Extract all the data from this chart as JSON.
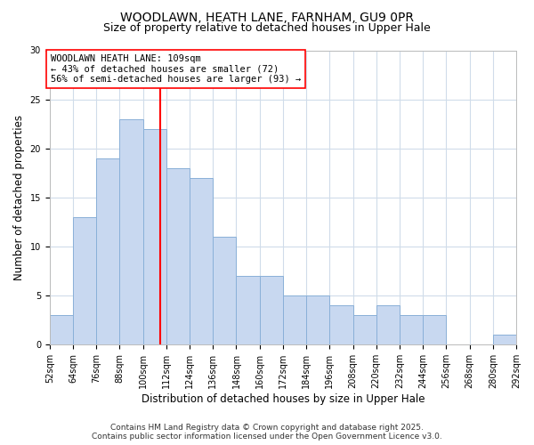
{
  "title": "WOODLAWN, HEATH LANE, FARNHAM, GU9 0PR",
  "subtitle": "Size of property relative to detached houses in Upper Hale",
  "xlabel": "Distribution of detached houses by size in Upper Hale",
  "ylabel": "Number of detached properties",
  "bar_color": "#c8d8f0",
  "bar_edge_color": "#8ab0d8",
  "grid_color": "#d0dcea",
  "background_color": "#ffffff",
  "vline_x": 109,
  "vline_color": "red",
  "annotation_title": "WOODLAWN HEATH LANE: 109sqm",
  "annotation_line1": "← 43% of detached houses are smaller (72)",
  "annotation_line2": "56% of semi-detached houses are larger (93) →",
  "annotation_box_color": "red",
  "bin_edges": [
    52,
    64,
    76,
    88,
    100,
    112,
    124,
    136,
    148,
    160,
    172,
    184,
    196,
    208,
    220,
    232,
    244,
    256,
    268,
    280,
    292
  ],
  "bin_counts": [
    3,
    13,
    19,
    23,
    22,
    18,
    17,
    11,
    7,
    7,
    5,
    5,
    4,
    3,
    4,
    3,
    3,
    0,
    0,
    1
  ],
  "ylim": [
    0,
    30
  ],
  "yticks": [
    0,
    5,
    10,
    15,
    20,
    25,
    30
  ],
  "footer1": "Contains HM Land Registry data © Crown copyright and database right 2025.",
  "footer2": "Contains public sector information licensed under the Open Government Licence v3.0.",
  "title_fontsize": 10,
  "subtitle_fontsize": 9,
  "axis_label_fontsize": 8.5,
  "tick_fontsize": 7,
  "footer_fontsize": 6.5,
  "annotation_fontsize": 7.5
}
